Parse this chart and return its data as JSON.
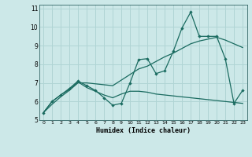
{
  "title": "",
  "xlabel": "Humidex (Indice chaleur)",
  "ylabel": "",
  "bg_color": "#cce8e8",
  "grid_color": "#b0d4d4",
  "line_color": "#1a6b60",
  "xlim": [
    -0.5,
    23.5
  ],
  "ylim": [
    5.0,
    11.2
  ],
  "xticks": [
    0,
    1,
    2,
    3,
    4,
    5,
    6,
    7,
    8,
    9,
    10,
    11,
    12,
    13,
    14,
    15,
    16,
    17,
    18,
    19,
    20,
    21,
    22,
    23
  ],
  "yticks": [
    5,
    6,
    7,
    8,
    9,
    10,
    11
  ],
  "line1_x": [
    0,
    1,
    2,
    3,
    4,
    5,
    6,
    7,
    8,
    9,
    10,
    11,
    12,
    13,
    14,
    15,
    16,
    17,
    18,
    19,
    20,
    21,
    22,
    23
  ],
  "line1_y": [
    5.4,
    6.0,
    6.35,
    6.7,
    7.1,
    6.85,
    6.6,
    6.2,
    5.8,
    5.9,
    7.0,
    8.25,
    8.3,
    7.5,
    7.65,
    8.7,
    9.95,
    10.8,
    9.5,
    9.5,
    9.5,
    8.3,
    5.9,
    6.6
  ],
  "line2_x": [
    0,
    1,
    2,
    3,
    4,
    5,
    6,
    7,
    8,
    9,
    10,
    11,
    12,
    13,
    14,
    15,
    16,
    17,
    18,
    19,
    20,
    21,
    22,
    23
  ],
  "line2_y": [
    5.4,
    5.85,
    6.25,
    6.6,
    7.0,
    7.0,
    6.95,
    6.9,
    6.85,
    7.15,
    7.45,
    7.75,
    7.9,
    8.15,
    8.4,
    8.6,
    8.85,
    9.1,
    9.25,
    9.35,
    9.45,
    9.3,
    9.1,
    8.9
  ],
  "line3_x": [
    0,
    1,
    2,
    3,
    4,
    5,
    6,
    7,
    8,
    9,
    10,
    11,
    12,
    13,
    14,
    15,
    16,
    17,
    18,
    19,
    20,
    21,
    22,
    23
  ],
  "line3_y": [
    5.4,
    6.0,
    6.35,
    6.65,
    7.05,
    6.75,
    6.55,
    6.35,
    6.2,
    6.4,
    6.55,
    6.55,
    6.5,
    6.4,
    6.35,
    6.3,
    6.25,
    6.2,
    6.15,
    6.1,
    6.05,
    6.0,
    5.95,
    5.9
  ]
}
